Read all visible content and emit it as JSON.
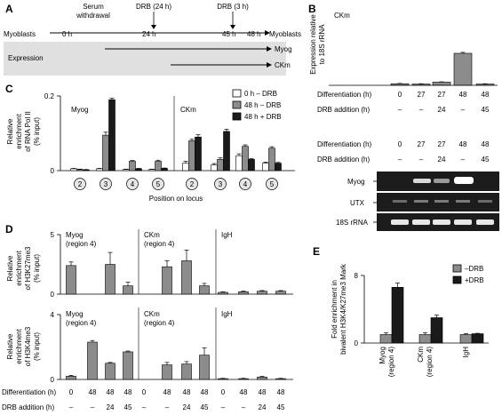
{
  "panel_labels": {
    "a": "A",
    "b": "B",
    "c": "C",
    "d": "D",
    "e": "E"
  },
  "panel_a": {
    "serum": "Serum",
    "withdrawal": "withdrawal",
    "drb24": "DRB (24 h)",
    "drb3": "DRB (3 h)",
    "start": "Myoblasts",
    "end": "Myoblasts",
    "t0": "0 h",
    "t24": "24 h",
    "t45": "45 h",
    "t48": "48 h",
    "expression": "Expression",
    "myog": "Myog",
    "ckm": "CKm"
  },
  "panel_b": {
    "gene": "CKm",
    "ylabel_line1": "Expression relative",
    "ylabel_line2": "to 18S rRNA",
    "row_diff": "Differentiation (h)",
    "row_drb": "DRB addition (h)",
    "diff_values": [
      "0",
      "27",
      "27",
      "48",
      "48"
    ],
    "drb_values": [
      "–",
      "–",
      "24",
      "–",
      "45"
    ],
    "gel_rows": [
      "Myog",
      "UTX",
      "18S rRNA"
    ],
    "chart_data": {
      "type": "bar",
      "categories": [
        "0/–",
        "27/–",
        "27/24",
        "48/–",
        "48/45"
      ],
      "values": [
        5,
        4,
        10,
        100,
        4
      ],
      "errors": [
        1,
        1,
        1,
        3,
        1
      ],
      "ylim": [
        0,
        120
      ]
    }
  },
  "panel_c": {
    "ylabel": [
      "Relative",
      "enrichment",
      "of RNA Pol II",
      "(% input)"
    ],
    "xlabel": "Position on locus",
    "tick_top": "0.2",
    "tick_bottom": "0",
    "gene1": "Myog",
    "gene2": "CKm",
    "positions": [
      "2",
      "3",
      "4",
      "5",
      "2",
      "3",
      "4",
      "5"
    ],
    "legend": [
      "0 h – DRB",
      "48 h – DRB",
      "48 h + DRB"
    ],
    "chart_data": {
      "type": "bar",
      "categories": [
        "2",
        "3",
        "4",
        "5",
        "2",
        "3",
        "4",
        "5"
      ],
      "series": [
        {
          "name": "0 h – DRB",
          "values": [
            0.005,
            0.005,
            0.003,
            0.003,
            0.02,
            0.015,
            0.04,
            0.02
          ],
          "errors": [
            0.001,
            0.001,
            0.001,
            0.001,
            0.005,
            0.004,
            0.005,
            0.003
          ]
        },
        {
          "name": "48 h – DRB",
          "values": [
            0.003,
            0.095,
            0.025,
            0.025,
            0.08,
            0.03,
            0.065,
            0.06
          ],
          "errors": [
            0.001,
            0.008,
            0.002,
            0.003,
            0.004,
            0.004,
            0.004,
            0.004
          ]
        },
        {
          "name": "48 h + DRB",
          "values": [
            0.002,
            0.19,
            0.005,
            0.006,
            0.09,
            0.105,
            0.03,
            0.02
          ],
          "errors": [
            0.001,
            0.004,
            0.001,
            0.001,
            0.006,
            0.006,
            0.002,
            0.002
          ]
        }
      ],
      "ylim": [
        0,
        0.2
      ]
    }
  },
  "panel_d": {
    "ylabel_top": [
      "Relative",
      "enrichment",
      "of H3K27me3",
      "(% input)"
    ],
    "ylabel_bottom": [
      "Relative",
      "enrichment",
      "of H3K4me3",
      "(% input)"
    ],
    "tick_top_max": "5",
    "tick_bottom_max": "4",
    "tick_zero": "0",
    "sub1_line1": "Myog",
    "sub1_line2": "(region 4)",
    "sub2_line1": "CKm",
    "sub2_line2": "(region 4)",
    "sub3": "IgH",
    "row_diff": "Differentiation (h)",
    "row_drb": "DRB addition (h)",
    "diff_values": [
      "0",
      "48",
      "48",
      "48"
    ],
    "drb_values": [
      "–",
      "–",
      "24",
      "45"
    ],
    "chart_data": [
      {
        "type": "bar",
        "title": "H3K27me3",
        "categories": [
          "Myog",
          "CKm",
          "IgH"
        ],
        "ylim": [
          0,
          5
        ],
        "groups": [
          [
            2.4,
            0,
            2.5,
            0.7
          ],
          [
            0,
            2.3,
            2.8,
            0.7
          ],
          [
            0.15,
            0.2,
            0.25,
            0.25
          ]
        ],
        "errors": [
          [
            0.3,
            0,
            1.0,
            0.3
          ],
          [
            0,
            0.5,
            0.9,
            0.2
          ],
          [
            0.05,
            0.05,
            0.05,
            0.05
          ]
        ]
      },
      {
        "type": "bar",
        "title": "H3K4me3",
        "categories": [
          "Myog",
          "CKm",
          "IgH"
        ],
        "ylim": [
          0,
          4
        ],
        "groups": [
          [
            0.2,
            2.3,
            1.0,
            1.7
          ],
          [
            0,
            0.9,
            0.95,
            1.5
          ],
          [
            0.05,
            0.05,
            0.15,
            0.05
          ]
        ],
        "errors": [
          [
            0.05,
            0.1,
            0.05,
            0.05
          ],
          [
            0,
            0.15,
            0.15,
            0.45
          ],
          [
            0.02,
            0.02,
            0.04,
            0.02
          ]
        ]
      }
    ]
  },
  "panel_e": {
    "ylabel": [
      "Fold enrichment in",
      "bivalent H3K4/K27me3 Mark"
    ],
    "tick_top": "8",
    "tick_zero": "0",
    "cat1_line1": "Myog",
    "cat1_line2": "(region 4)",
    "cat2_line1": "CKm",
    "cat2_line2": "(region 4)",
    "cat3": "IgH",
    "legend": [
      "–DRB",
      "+DRB"
    ],
    "chart_data": {
      "type": "bar",
      "categories": [
        "Myog (region 4)",
        "CKm (region 4)",
        "IgH"
      ],
      "series": [
        {
          "name": "–DRB",
          "values": [
            1.0,
            1.0,
            1.0
          ],
          "errors": [
            0.2,
            0.2,
            0.1
          ]
        },
        {
          "name": "+DRB",
          "values": [
            6.6,
            3.0,
            1.1
          ],
          "errors": [
            0.5,
            0.3,
            0.05
          ]
        }
      ],
      "ylim": [
        0,
        8
      ]
    }
  },
  "colors": {
    "white": "#ffffff",
    "gray": "#8c8c8c",
    "black": "#1a1a1a",
    "band": "#e0e0e0",
    "gel": "#1c1c1c"
  }
}
